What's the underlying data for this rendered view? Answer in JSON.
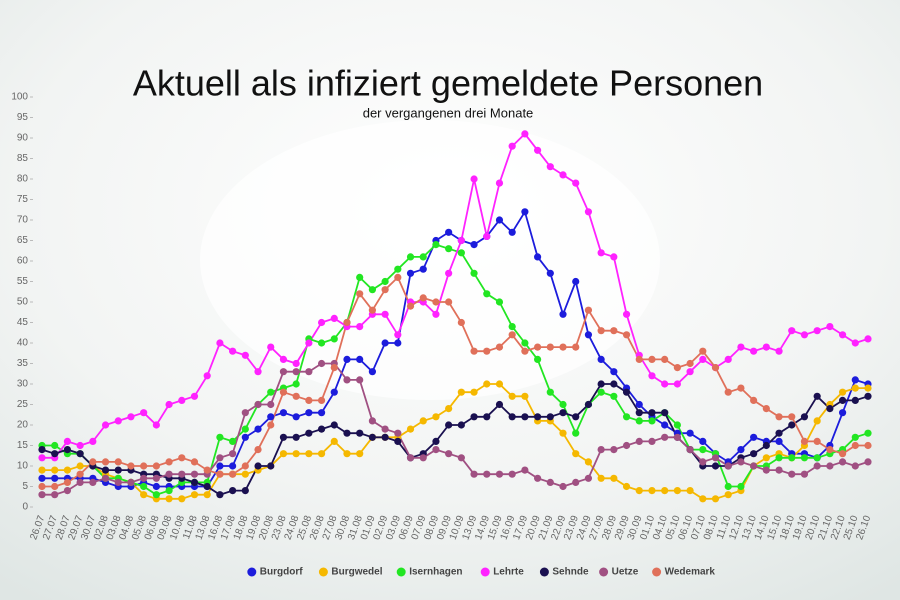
{
  "chart_data": {
    "type": "line",
    "title": "Aktuell als infiziert gemeldete Personen",
    "subtitle": "der vergangenen drei Monate",
    "categories": [
      "26.07",
      "27.07",
      "28.07",
      "29.07",
      "30.07",
      "02.08",
      "03.08",
      "04.08",
      "05.08",
      "06.08",
      "09.08",
      "10.08",
      "11.08",
      "13.08",
      "16.08",
      "17.08",
      "18.08",
      "19.08",
      "20.08",
      "23.08",
      "24.08",
      "25.08",
      "26.08",
      "27.08",
      "30.08",
      "31.08",
      "01.09",
      "02.09",
      "03.09",
      "06.09",
      "07.09",
      "08.09",
      "09.09",
      "10.09",
      "13.09",
      "14.09",
      "15.09",
      "16.09",
      "17.09",
      "20.09",
      "21.09",
      "22.09",
      "23.09",
      "24.09",
      "27.09",
      "28.09",
      "29.09",
      "30.09",
      "01.10",
      "04.10",
      "05.10",
      "06.10",
      "07.10",
      "08.10",
      "11.10",
      "12.10",
      "13.10",
      "14.10",
      "15.10",
      "18.10",
      "19.10",
      "20.10",
      "21.10",
      "22.10",
      "25.10",
      "26.10"
    ],
    "series": [
      {
        "name": "Burgdorf",
        "color": "#1c1cdc",
        "values": [
          7,
          7,
          7,
          7,
          7,
          6,
          5,
          5,
          6,
          5,
          5,
          5,
          5,
          5,
          10,
          10,
          17,
          19,
          22,
          23,
          22,
          23,
          23,
          28,
          36,
          36,
          33,
          40,
          40,
          57,
          58,
          65,
          67,
          65,
          64,
          66,
          70,
          67,
          72,
          61,
          57,
          47,
          55,
          42,
          36,
          33,
          29,
          25,
          22,
          20,
          18,
          18,
          16,
          13,
          11,
          14,
          17,
          16,
          16,
          13,
          13,
          12,
          15,
          23,
          31,
          30
        ]
      },
      {
        "name": "Burgwedel",
        "color": "#f5b800",
        "values": [
          9,
          9,
          9,
          10,
          10,
          8,
          7,
          6,
          3,
          2,
          2,
          2,
          3,
          3,
          8,
          8,
          8,
          9,
          10,
          13,
          13,
          13,
          13,
          16,
          13,
          13,
          17,
          17,
          17,
          19,
          21,
          22,
          24,
          28,
          28,
          30,
          30,
          27,
          27,
          21,
          21,
          18,
          13,
          11,
          7,
          7,
          5,
          4,
          4,
          4,
          4,
          4,
          2,
          2,
          3,
          4,
          10,
          12,
          13,
          12,
          15,
          21,
          25,
          28,
          29,
          29
        ]
      },
      {
        "name": "Isernhagen",
        "color": "#22e622",
        "values": [
          15,
          15,
          13,
          13,
          10,
          7,
          7,
          6,
          5,
          3,
          4,
          6,
          6,
          6,
          17,
          16,
          19,
          25,
          28,
          29,
          30,
          41,
          40,
          41,
          45,
          56,
          53,
          55,
          58,
          61,
          61,
          64,
          63,
          62,
          57,
          52,
          50,
          44,
          40,
          36,
          28,
          25,
          18,
          25,
          28,
          27,
          22,
          21,
          21,
          23,
          20,
          14,
          14,
          13,
          5,
          5,
          10,
          10,
          12,
          12,
          12,
          12,
          13,
          14,
          17,
          18
        ]
      },
      {
        "name": "Lehrte",
        "color": "#ff22ff",
        "values": [
          12,
          12,
          16,
          15,
          16,
          20,
          21,
          22,
          23,
          20,
          25,
          26,
          27,
          32,
          40,
          38,
          37,
          33,
          39,
          36,
          35,
          40,
          45,
          46,
          44,
          44,
          47,
          47,
          42,
          50,
          50,
          47,
          57,
          65,
          80,
          66,
          79,
          88,
          91,
          87,
          83,
          81,
          79,
          72,
          62,
          61,
          47,
          37,
          32,
          30,
          30,
          33,
          36,
          34,
          36,
          39,
          38,
          39,
          38,
          43,
          42,
          43,
          44,
          42,
          40,
          41
        ]
      },
      {
        "name": "Sehnde",
        "color": "#1a1050",
        "values": [
          14,
          13,
          14,
          13,
          10,
          9,
          9,
          9,
          8,
          8,
          7,
          7,
          6,
          5,
          3,
          4,
          4,
          10,
          10,
          17,
          17,
          18,
          19,
          20,
          18,
          18,
          17,
          17,
          16,
          12,
          13,
          16,
          20,
          20,
          22,
          22,
          25,
          22,
          22,
          22,
          22,
          23,
          22,
          25,
          30,
          30,
          28,
          23,
          23,
          23,
          17,
          14,
          10,
          10,
          10,
          12,
          13,
          15,
          18,
          20,
          22,
          27,
          24,
          26,
          26,
          27
        ]
      },
      {
        "name": "Uetze",
        "color": "#a05082",
        "values": [
          3,
          3,
          4,
          6,
          6,
          7,
          6,
          6,
          7,
          7,
          8,
          8,
          8,
          8,
          12,
          13,
          23,
          25,
          25,
          33,
          33,
          33,
          35,
          35,
          31,
          31,
          21,
          19,
          18,
          12,
          12,
          14,
          13,
          12,
          8,
          8,
          8,
          8,
          9,
          7,
          6,
          5,
          6,
          7,
          14,
          14,
          15,
          16,
          16,
          17,
          17,
          14,
          11,
          12,
          10,
          11,
          10,
          9,
          9,
          8,
          8,
          10,
          10,
          11,
          10,
          11
        ]
      },
      {
        "name": "Wedemark",
        "color": "#e0705a",
        "values": [
          5,
          5,
          6,
          8,
          11,
          11,
          11,
          10,
          10,
          10,
          11,
          12,
          11,
          9,
          8,
          8,
          10,
          14,
          20,
          28,
          27,
          26,
          26,
          34,
          45,
          52,
          48,
          53,
          56,
          49,
          51,
          50,
          50,
          45,
          38,
          38,
          39,
          42,
          38,
          39,
          39,
          39,
          39,
          48,
          43,
          43,
          42,
          36,
          36,
          36,
          34,
          35,
          38,
          34,
          28,
          29,
          26,
          24,
          22,
          22,
          16,
          16,
          14,
          13,
          15,
          15
        ]
      }
    ],
    "ylim": [
      0,
      100
    ],
    "yticks": [
      0,
      5,
      10,
      15,
      20,
      25,
      30,
      35,
      40,
      45,
      50,
      55,
      60,
      65,
      70,
      75,
      80,
      85,
      90,
      95,
      100
    ],
    "grid": false,
    "legend": "bottom"
  }
}
